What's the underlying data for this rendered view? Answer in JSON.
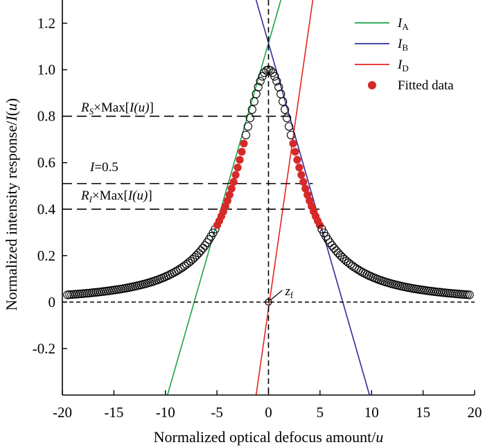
{
  "chart_data": {
    "type": "scatter",
    "xlabel": "Normalized optical defocus amount/u",
    "ylabel": "Normalized intensity response/I(u)",
    "xlim": [
      -20,
      20
    ],
    "ylim": [
      -0.4,
      1.3
    ],
    "xticks": [
      -20,
      -15,
      -10,
      -5,
      0,
      5,
      10,
      15,
      20
    ],
    "xtick_labels": [
      "-20",
      "-15",
      "-10",
      "-5",
      "0",
      "5",
      "10",
      "15",
      "20"
    ],
    "yticks": [
      -0.2,
      0,
      0.2,
      0.4,
      0.6,
      0.8,
      1.0,
      1.2
    ],
    "ytick_labels": [
      "-0.2",
      "0",
      "0.2",
      "0.4",
      "0.6",
      "0.8",
      "1.0",
      "1.2"
    ],
    "grid": false,
    "legend_position": "top-right",
    "response_curve": {
      "marker": "open-circle",
      "shape": "lorentzian",
      "peak_value": 1.0,
      "half_width_at_half_max": 3.5,
      "x_range": [
        -19.5,
        19.5
      ],
      "point_count": 197
    },
    "lines": [
      {
        "id": "A",
        "label_main": "I",
        "label_sub": "A",
        "color": "#1aa34a",
        "x": [
          -9.8,
          1.2
        ],
        "y": [
          -0.4,
          1.3
        ]
      },
      {
        "id": "B",
        "label_main": "I",
        "label_sub": "B",
        "color": "#2b2d9a",
        "x": [
          -1.2,
          9.8
        ],
        "y": [
          1.3,
          -0.4
        ]
      },
      {
        "id": "D",
        "label_main": "I",
        "label_sub": "D",
        "color": "#e8231e",
        "x": [
          -1.2,
          4.3
        ],
        "y": [
          -0.4,
          1.3
        ]
      }
    ],
    "fitted_data": {
      "label": "Fitted data",
      "color": "#d62a2a",
      "ranges": [
        [
          -5.0,
          -2.2
        ],
        [
          2.2,
          5.0
        ]
      ]
    },
    "reference_lines": [
      {
        "id": "rs",
        "y": 0.8,
        "x_from": -20,
        "x_to": 2.3,
        "prefix": "R",
        "sub": "S",
        "suffix": "×Max[",
        "func": "I(u)",
        "close": "]"
      },
      {
        "id": "half",
        "y": 0.51,
        "x_from": -20,
        "x_to": 4.3,
        "prefix": "I",
        "sub": "",
        "suffix": "=0.5",
        "func": "",
        "close": ""
      },
      {
        "id": "ri",
        "y": 0.4,
        "x_from": -20,
        "x_to": 5.0,
        "prefix": "R",
        "sub": "I",
        "suffix": "×Max[",
        "func": "I(u)",
        "close": "]"
      }
    ],
    "baseline": {
      "y": 0,
      "x_from": -20,
      "x_to": 20
    },
    "vertical_line": {
      "x": 0
    },
    "focus_marker": {
      "x": 0,
      "y": 0,
      "label_main": "z",
      "label_sub": "f"
    }
  }
}
